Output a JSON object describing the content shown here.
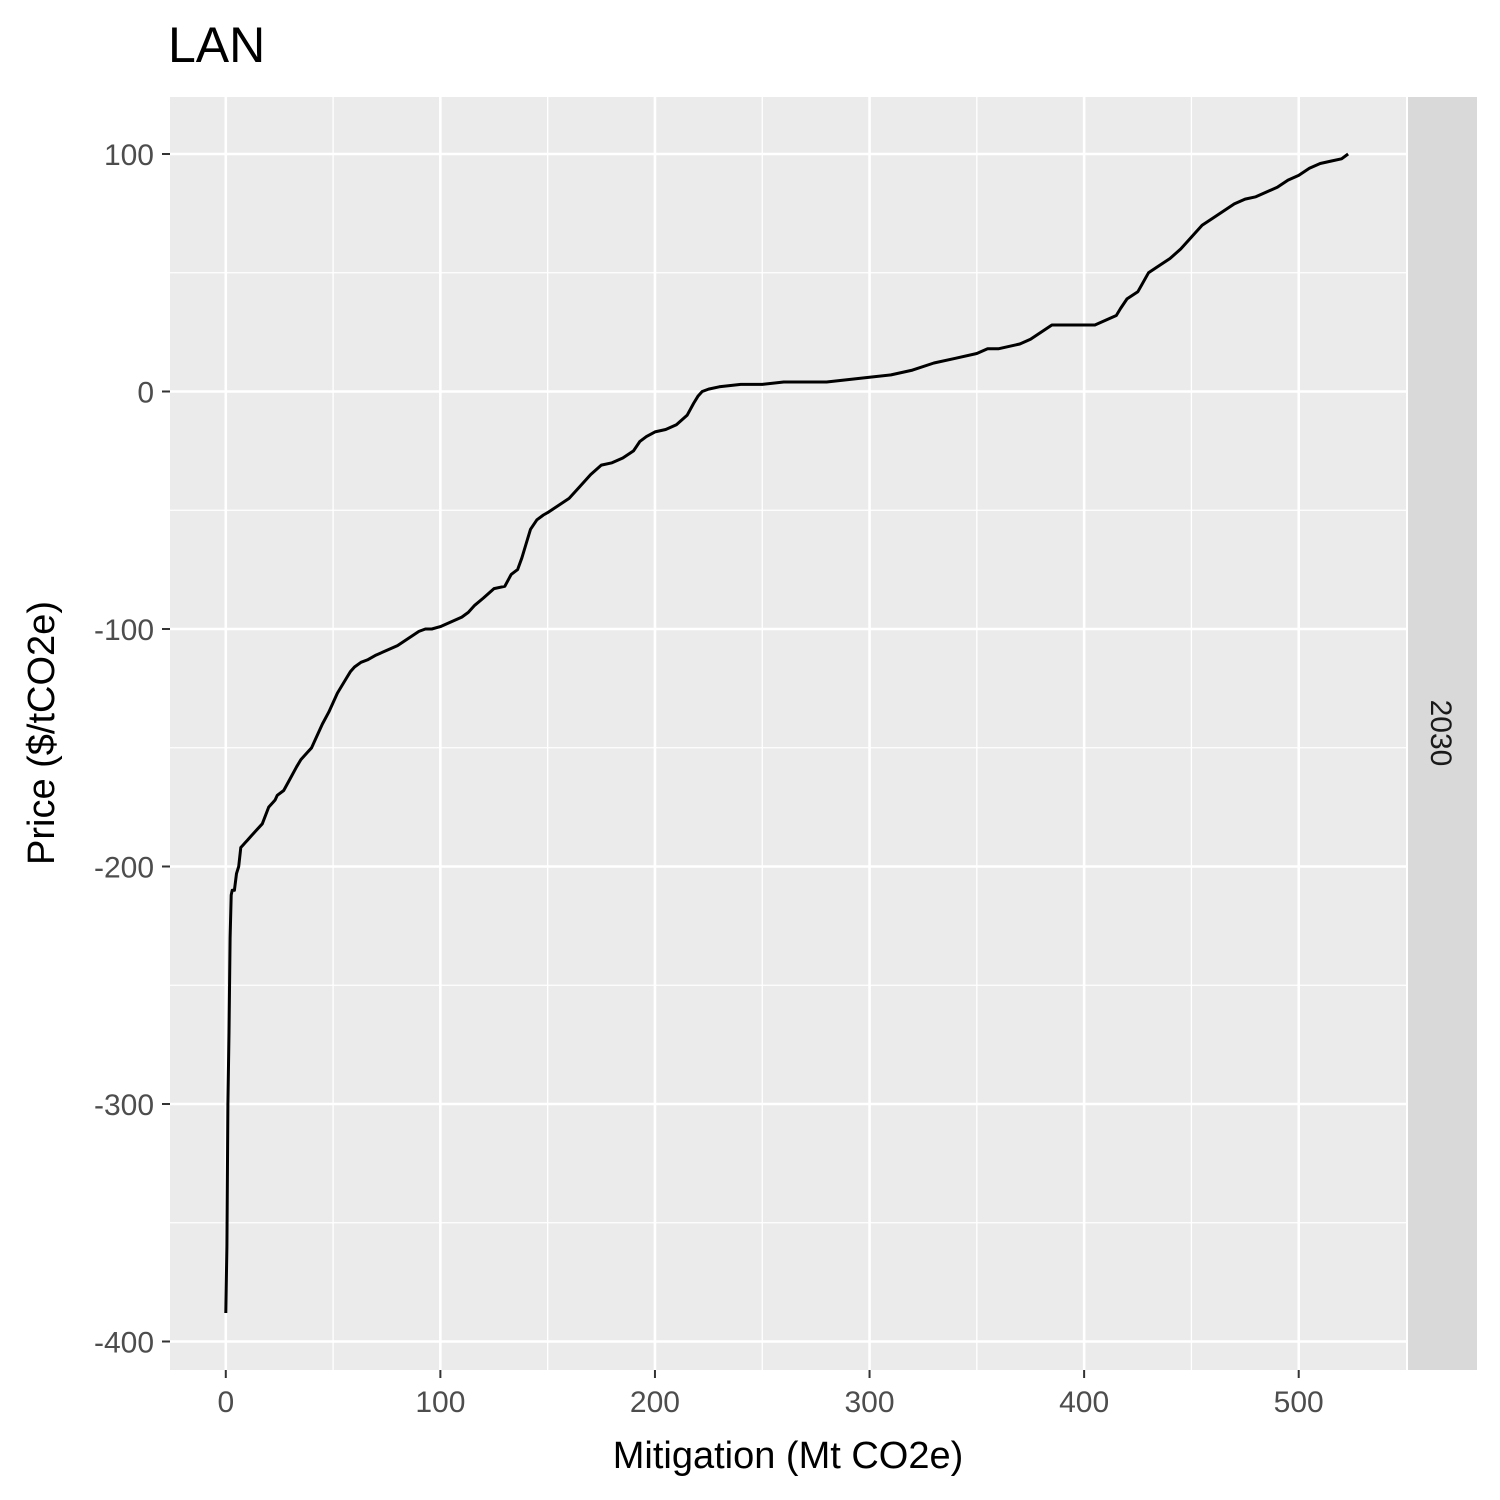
{
  "chart_data": {
    "type": "line",
    "title": "LAN",
    "xlabel": "Mitigation (Mt CO2e)",
    "ylabel": "Price ($/tCO2e)",
    "facet_label": "2030",
    "xlim": [
      -26,
      550
    ],
    "ylim": [
      -412,
      124
    ],
    "x_ticks": [
      0,
      100,
      200,
      300,
      400,
      500
    ],
    "y_ticks": [
      -400,
      -300,
      -200,
      -100,
      0,
      100
    ],
    "x_tick_labels": [
      "0",
      "100",
      "200",
      "300",
      "400",
      "500"
    ],
    "y_tick_labels": [
      "-400",
      "-300",
      "-200",
      "-100",
      "0",
      "100"
    ],
    "grid": true,
    "legend": "none",
    "colors": {
      "panel_bg": "#ebebeb",
      "strip_bg": "#d9d9d9",
      "grid": "#ffffff",
      "line": "#000000"
    },
    "series": [
      {
        "x": [
          0,
          0.5,
          1,
          1.5,
          2,
          2.5,
          3,
          4,
          5,
          6,
          7,
          8,
          9,
          10,
          12,
          14,
          17,
          20,
          22,
          23,
          24,
          27,
          30,
          33,
          35,
          38,
          40,
          42,
          45,
          48,
          50,
          52,
          54,
          56,
          58,
          60,
          63,
          66,
          70,
          75,
          80,
          85,
          90,
          93,
          96,
          100,
          105,
          110,
          113,
          116,
          120,
          125,
          130,
          133,
          136,
          138,
          140,
          142,
          145,
          148,
          150,
          155,
          160,
          165,
          170,
          175,
          180,
          185,
          190,
          193,
          196,
          200,
          205,
          210,
          215,
          218,
          220,
          222,
          225,
          230,
          240,
          250,
          260,
          280,
          290,
          300,
          310,
          320,
          330,
          340,
          350,
          355,
          360,
          370,
          375,
          380,
          385,
          390,
          400,
          405,
          410,
          415,
          417,
          420,
          425,
          430,
          435,
          440,
          445,
          450,
          455,
          460,
          465,
          470,
          475,
          480,
          485,
          490,
          495,
          500,
          505,
          510,
          515,
          520,
          523
        ],
        "y": [
          -388,
          -360,
          -300,
          -270,
          -230,
          -212,
          -210,
          -210,
          -203,
          -200,
          -192,
          -191,
          -190,
          -189,
          -187,
          -185,
          -182,
          -175,
          -173,
          -172,
          -170,
          -168,
          -163,
          -158,
          -155,
          -152,
          -150,
          -146,
          -140,
          -135,
          -131,
          -127,
          -124,
          -121,
          -118,
          -116,
          -114,
          -113,
          -111,
          -109,
          -107,
          -104,
          -101,
          -100,
          -100,
          -99,
          -97,
          -95,
          -93,
          -90,
          -87,
          -83,
          -82,
          -77,
          -75,
          -70,
          -64,
          -58,
          -54,
          -52,
          -51,
          -48,
          -45,
          -40,
          -35,
          -31,
          -30,
          -28,
          -25,
          -21,
          -19,
          -17,
          -16,
          -14,
          -10,
          -5,
          -2,
          0,
          1,
          2,
          3,
          3,
          4,
          4,
          5,
          6,
          7,
          9,
          12,
          14,
          16,
          18,
          18,
          20,
          22,
          25,
          28,
          28,
          28,
          28,
          30,
          32,
          35,
          39,
          42,
          50,
          53,
          56,
          60,
          65,
          70,
          73,
          76,
          79,
          81,
          82,
          84,
          86,
          89,
          91,
          94,
          96,
          97,
          98,
          100
        ]
      }
    ]
  }
}
